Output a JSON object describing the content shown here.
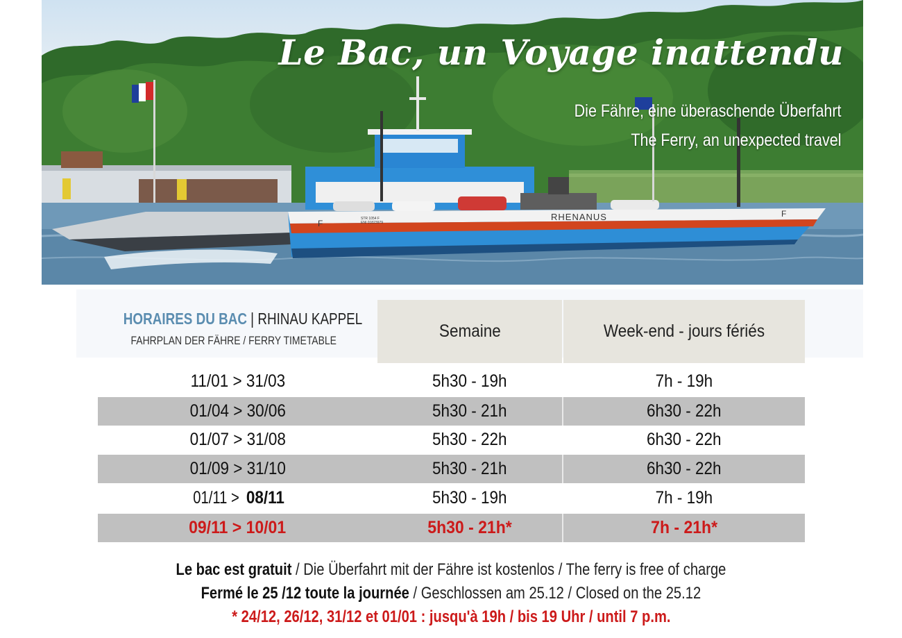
{
  "hero": {
    "title": "Le Bac, un Voyage inattendu",
    "subtitle_de": "Die Fähre, eine überaschende Überfahrt",
    "subtitle_en": "The Ferry, an unexpected travel",
    "boat_name": "RHENANUS",
    "boat_letter": "F",
    "registration_line1": "STR 1054 F",
    "registration_line2": "ENI 01823979"
  },
  "timetable": {
    "title_highlight": "HORAIRES DU BAC",
    "title_separator": "|",
    "title_place": "RHINAU KAPPEL",
    "subtitle": "FAHRPLAN DER FÄHRE / FERRY TIMETABLE",
    "col_weekday": "Semaine",
    "col_weekend": "Week-end - jours fériés",
    "rows": [
      {
        "period": "11/01 > 31/03",
        "weekday": "5h30 - 19h",
        "weekend": "7h - 19h"
      },
      {
        "period": "01/04 > 30/06",
        "weekday": "5h30 - 21h",
        "weekend": "6h30 - 22h"
      },
      {
        "period": "01/07 > 31/08",
        "weekday": "5h30 - 22h",
        "weekend": "6h30 - 22h"
      },
      {
        "period": "01/09 > 31/10",
        "weekday": "5h30 - 21h",
        "weekend": "6h30 - 22h"
      },
      {
        "period_start": "01/11 >",
        "period_end": "08/11",
        "weekday": "5h30 - 19h",
        "weekend": "7h - 19h"
      },
      {
        "period": "09/11 > 10/01",
        "weekday": "5h30 - 21h*",
        "weekend": "7h - 21h*"
      }
    ],
    "highlight_color": "#cc1a1a",
    "heading_color": "#5b8db0"
  },
  "notes": {
    "free_strong": "Le bac est gratuit",
    "free_rest": " / Die Überfahrt mit der Fähre ist kostenlos / The ferry is free of charge",
    "closed_strong": "Fermé le 25 /12 toute la journée",
    "closed_rest": " / Geschlossen am 25.12 / Closed on the 25.12",
    "exception": "* 24/12, 26/12, 31/12 et 01/01 : jusqu'à 19h / bis 19 Uhr / until 7 p.m."
  }
}
